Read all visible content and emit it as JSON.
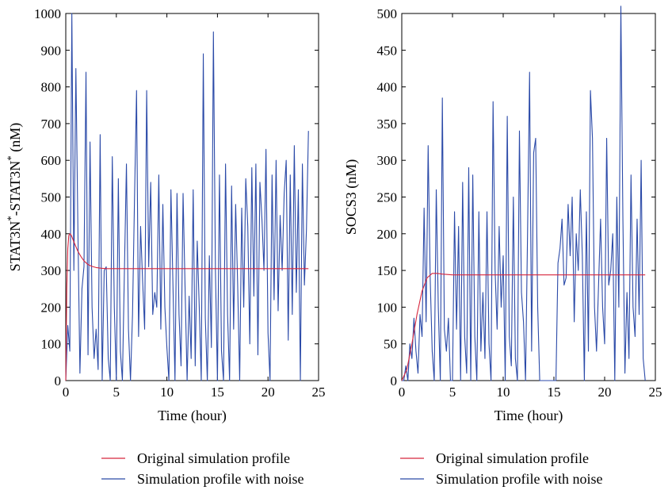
{
  "chart_data": [
    {
      "type": "line",
      "title": "",
      "xlabel": "Time (hour)",
      "ylabel": "STAT3N*-STAT3N* (nM)",
      "ylabel_parts": [
        "STAT3N",
        "*",
        "-STAT3N",
        "*",
        " (nM)"
      ],
      "xlim": [
        0,
        25
      ],
      "ylim": [
        0,
        1000
      ],
      "xticks": [
        "0",
        "5",
        "10",
        "15",
        "20",
        "25"
      ],
      "yticks": [
        "0",
        "100",
        "200",
        "300",
        "400",
        "500",
        "600",
        "700",
        "800",
        "900",
        "1000"
      ],
      "legend_position": "below",
      "series": [
        {
          "name": "Original simulation profile",
          "color": "#d7263d",
          "x": [
            0,
            0.1,
            0.2,
            0.3,
            0.4,
            0.5,
            0.6,
            0.8,
            1.0,
            1.2,
            1.5,
            1.8,
            2.2,
            2.6,
            3.0,
            3.5,
            4.0,
            5.0,
            24
          ],
          "y": [
            0,
            250,
            360,
            395,
            400,
            398,
            392,
            378,
            365,
            352,
            338,
            326,
            316,
            311,
            308,
            306,
            305,
            305,
            305
          ]
        },
        {
          "name": "Simulation profile with noise",
          "color": "#2b4aa8",
          "x": [
            0.0,
            0.2,
            0.4,
            0.6,
            0.8,
            1.0,
            1.2,
            1.4,
            1.6,
            1.8,
            2.0,
            2.2,
            2.4,
            2.6,
            2.8,
            3.0,
            3.2,
            3.4,
            3.6,
            3.8,
            4.0,
            4.2,
            4.4,
            4.6,
            4.8,
            5.0,
            5.2,
            5.4,
            5.6,
            5.8,
            6.0,
            6.2,
            6.4,
            6.6,
            6.8,
            7.0,
            7.2,
            7.4,
            7.6,
            7.8,
            8.0,
            8.2,
            8.4,
            8.6,
            8.8,
            9.0,
            9.2,
            9.4,
            9.6,
            9.8,
            10.0,
            10.2,
            10.4,
            10.6,
            10.8,
            11.0,
            11.2,
            11.4,
            11.6,
            11.8,
            12.0,
            12.2,
            12.4,
            12.6,
            12.8,
            13.0,
            13.2,
            13.4,
            13.6,
            13.8,
            14.0,
            14.2,
            14.4,
            14.6,
            14.8,
            15.0,
            15.2,
            15.4,
            15.6,
            15.8,
            16.0,
            16.2,
            16.4,
            16.6,
            16.8,
            17.0,
            17.2,
            17.4,
            17.6,
            17.8,
            18.0,
            18.2,
            18.4,
            18.6,
            18.8,
            19.0,
            19.2,
            19.4,
            19.6,
            19.8,
            20.0,
            20.2,
            20.4,
            20.6,
            20.8,
            21.0,
            21.2,
            21.4,
            21.6,
            21.8,
            22.0,
            22.2,
            22.4,
            22.6,
            22.8,
            23.0,
            23.2,
            23.4,
            23.6,
            23.8,
            24.0
          ],
          "y": [
            0,
            150,
            80,
            1000,
            300,
            850,
            410,
            20,
            250,
            310,
            840,
            70,
            650,
            200,
            60,
            140,
            30,
            670,
            0,
            300,
            310,
            60,
            0,
            610,
            200,
            0,
            550,
            80,
            0,
            300,
            590,
            140,
            0,
            180,
            500,
            790,
            120,
            420,
            270,
            140,
            790,
            310,
            540,
            180,
            240,
            200,
            560,
            140,
            480,
            200,
            90,
            0,
            520,
            260,
            0,
            510,
            180,
            40,
            510,
            250,
            0,
            230,
            60,
            520,
            40,
            380,
            200,
            0,
            890,
            170,
            0,
            340,
            90,
            950,
            300,
            0,
            560,
            80,
            0,
            590,
            180,
            0,
            530,
            140,
            480,
            260,
            0,
            470,
            200,
            550,
            420,
            100,
            580,
            230,
            590,
            70,
            540,
            440,
            300,
            630,
            130,
            0,
            560,
            220,
            600,
            190,
            450,
            300,
            510,
            600,
            110,
            560,
            180,
            640,
            240,
            520,
            0,
            590,
            260,
            410,
            680
          ]
        }
      ]
    },
    {
      "type": "line",
      "title": "",
      "xlabel": "Time (hour)",
      "ylabel": "SOCS3 (nM)",
      "xlim": [
        0,
        25
      ],
      "ylim": [
        0,
        500
      ],
      "xticks": [
        "0",
        "5",
        "10",
        "15",
        "20",
        "25"
      ],
      "yticks": [
        "0",
        "50",
        "100",
        "150",
        "200",
        "250",
        "300",
        "350",
        "400",
        "450",
        "500"
      ],
      "legend_position": "below",
      "series": [
        {
          "name": "Original simulation profile",
          "color": "#d7263d",
          "x": [
            0,
            0.5,
            1.0,
            1.5,
            2.0,
            2.5,
            3.0,
            3.5,
            4.0,
            5.0,
            24
          ],
          "y": [
            0,
            15,
            50,
            90,
            122,
            140,
            146,
            146,
            145,
            144,
            144
          ]
        },
        {
          "name": "Simulation profile with noise",
          "color": "#2b4aa8",
          "x": [
            0.0,
            0.2,
            0.4,
            0.6,
            0.8,
            1.0,
            1.2,
            1.4,
            1.6,
            1.8,
            2.0,
            2.2,
            2.4,
            2.6,
            2.8,
            3.0,
            3.2,
            3.4,
            3.6,
            3.8,
            4.0,
            4.2,
            4.4,
            4.6,
            4.8,
            5.0,
            5.2,
            5.4,
            5.6,
            5.8,
            6.0,
            6.2,
            6.4,
            6.6,
            6.8,
            7.0,
            7.2,
            7.4,
            7.6,
            7.8,
            8.0,
            8.2,
            8.4,
            8.6,
            8.8,
            9.0,
            9.2,
            9.4,
            9.6,
            9.8,
            10.0,
            10.2,
            10.4,
            10.6,
            10.8,
            11.0,
            11.2,
            11.4,
            11.6,
            11.8,
            12.0,
            12.2,
            12.4,
            12.6,
            12.8,
            13.0,
            13.2,
            13.4,
            13.6,
            13.8,
            14.0,
            14.2,
            14.4,
            14.6,
            14.8,
            15.0,
            15.2,
            15.4,
            15.6,
            15.8,
            16.0,
            16.2,
            16.4,
            16.6,
            16.8,
            17.0,
            17.2,
            17.4,
            17.6,
            17.8,
            18.0,
            18.2,
            18.4,
            18.6,
            18.8,
            19.0,
            19.2,
            19.4,
            19.6,
            19.8,
            20.0,
            20.2,
            20.4,
            20.6,
            20.8,
            21.0,
            21.2,
            21.4,
            21.6,
            21.8,
            22.0,
            22.2,
            22.4,
            22.6,
            22.8,
            23.0,
            23.2,
            23.4,
            23.6,
            23.8,
            24.0
          ],
          "y": [
            0,
            0,
            20,
            0,
            50,
            30,
            85,
            40,
            10,
            90,
            60,
            235,
            80,
            320,
            140,
            40,
            0,
            260,
            100,
            0,
            385,
            70,
            40,
            85,
            0,
            0,
            230,
            70,
            210,
            0,
            270,
            60,
            10,
            290,
            0,
            280,
            60,
            0,
            230,
            40,
            120,
            30,
            230,
            50,
            0,
            380,
            150,
            70,
            210,
            100,
            170,
            0,
            360,
            60,
            20,
            250,
            30,
            0,
            340,
            120,
            80,
            0,
            200,
            420,
            40,
            310,
            330,
            100,
            0,
            0,
            0,
            0,
            0,
            0,
            0,
            0,
            0,
            160,
            180,
            220,
            130,
            140,
            240,
            170,
            250,
            80,
            200,
            150,
            260,
            170,
            0,
            230,
            40,
            395,
            330,
            100,
            40,
            130,
            220,
            100,
            50,
            330,
            130,
            150,
            200,
            0,
            250,
            100,
            510,
            220,
            10,
            120,
            30,
            280,
            100,
            60,
            220,
            90,
            300,
            30,
            0
          ]
        }
      ]
    }
  ]
}
